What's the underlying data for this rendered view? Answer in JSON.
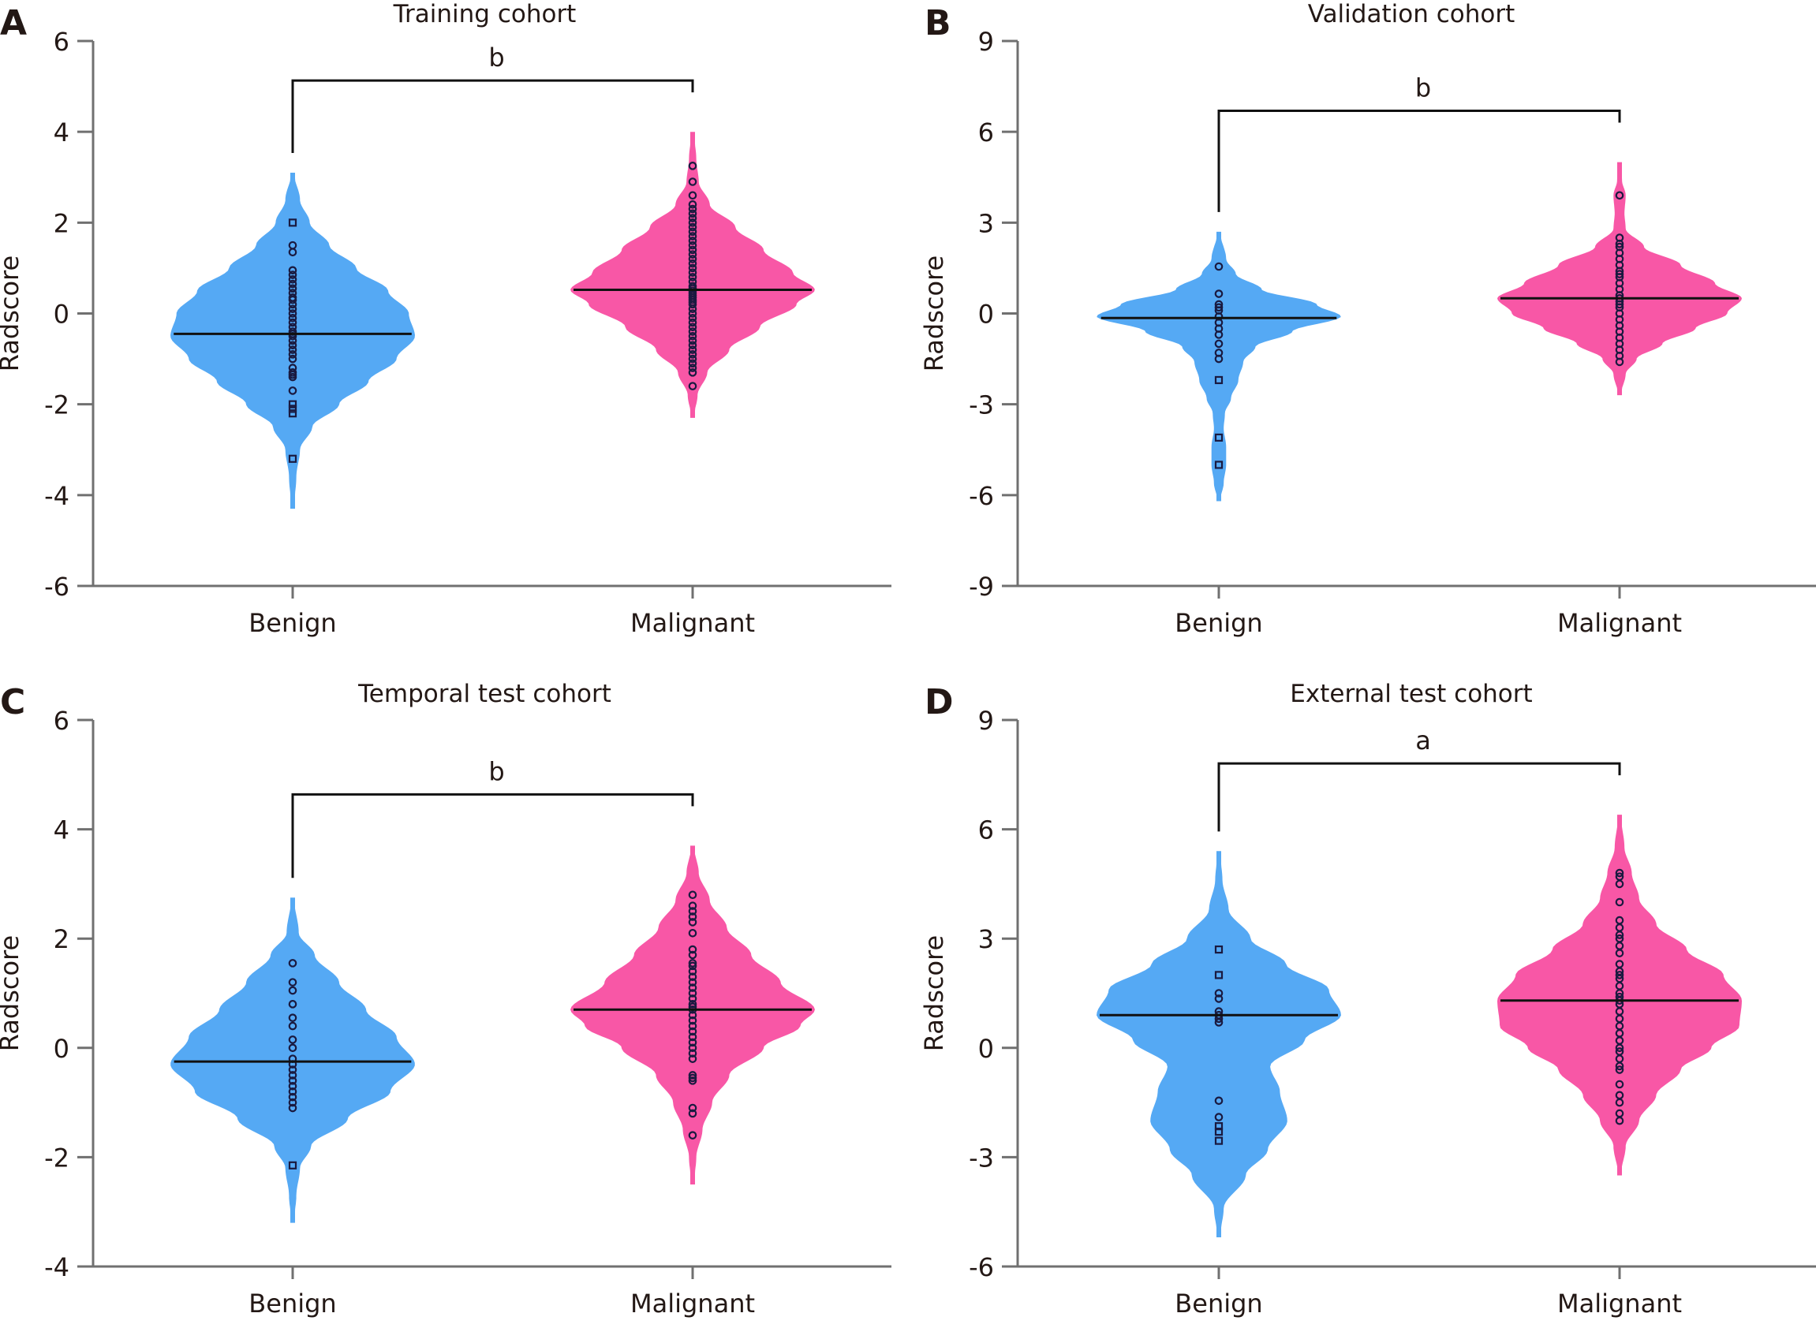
{
  "figure": {
    "colors": {
      "benign": "#55A9F4",
      "malignant": "#F857A6",
      "points": "#1a1a40",
      "axis": "#707070"
    }
  },
  "chart_data": [
    {
      "panel": "A",
      "type": "violin",
      "title": "Training cohort",
      "ylabel": "Radscore",
      "xlabel": "",
      "ylim": [
        -6,
        6
      ],
      "yticks": [
        6,
        4,
        2,
        0,
        -2,
        -4,
        -6
      ],
      "categories": [
        "Benign",
        "Malignant"
      ],
      "significance": "b",
      "series": [
        {
          "name": "Benign",
          "median": -0.45,
          "range": [
            -4.3,
            3.1
          ],
          "density": [
            [
              -4.3,
              0.01
            ],
            [
              -3.6,
              0.03
            ],
            [
              -3.0,
              0.06
            ],
            [
              -2.5,
              0.16
            ],
            [
              -2.0,
              0.38
            ],
            [
              -1.5,
              0.62
            ],
            [
              -1.0,
              0.85
            ],
            [
              -0.5,
              1.0
            ],
            [
              0.0,
              0.95
            ],
            [
              0.5,
              0.78
            ],
            [
              1.0,
              0.52
            ],
            [
              1.5,
              0.3
            ],
            [
              2.0,
              0.14
            ],
            [
              2.5,
              0.06
            ],
            [
              3.1,
              0.01
            ]
          ],
          "points": [
            2.0,
            1.5,
            1.35,
            0.95,
            0.85,
            0.75,
            0.65,
            0.55,
            0.45,
            0.35,
            0.3,
            0.2,
            0.1,
            0.0,
            -0.1,
            -0.2,
            -0.3,
            -0.4,
            -0.45,
            -0.5,
            -0.6,
            -0.7,
            -0.8,
            -0.9,
            -1.0,
            -1.2,
            -1.3,
            -1.35,
            -1.4,
            -1.7,
            -2.0,
            -2.1,
            -2.2,
            -3.2
          ]
        },
        {
          "name": "Malignant",
          "median": 0.52,
          "range": [
            -2.3,
            4.0
          ],
          "density": [
            [
              -2.3,
              0.01
            ],
            [
              -1.8,
              0.04
            ],
            [
              -1.3,
              0.12
            ],
            [
              -0.8,
              0.3
            ],
            [
              -0.3,
              0.55
            ],
            [
              0.2,
              0.85
            ],
            [
              0.52,
              1.0
            ],
            [
              0.9,
              0.82
            ],
            [
              1.4,
              0.58
            ],
            [
              1.9,
              0.35
            ],
            [
              2.4,
              0.14
            ],
            [
              2.9,
              0.05
            ],
            [
              3.4,
              0.03
            ],
            [
              4.0,
              0.01
            ]
          ],
          "points": [
            3.25,
            2.9,
            2.6,
            2.4,
            2.3,
            2.2,
            2.1,
            2.0,
            1.9,
            1.8,
            1.7,
            1.6,
            1.5,
            1.4,
            1.3,
            1.2,
            1.1,
            1.0,
            0.9,
            0.8,
            0.7,
            0.6,
            0.55,
            0.5,
            0.45,
            0.4,
            0.35,
            0.3,
            0.25,
            0.2,
            0.1,
            0.0,
            -0.1,
            -0.2,
            -0.3,
            -0.4,
            -0.5,
            -0.6,
            -0.7,
            -0.8,
            -0.9,
            -1.0,
            -1.1,
            -1.2,
            -1.3,
            -1.6
          ]
        }
      ]
    },
    {
      "panel": "B",
      "type": "violin",
      "title": "Validation cohort",
      "ylabel": "Radscore",
      "xlabel": "",
      "ylim": [
        -9,
        9
      ],
      "yticks": [
        9,
        6,
        3,
        0,
        -3,
        -6,
        -9
      ],
      "categories": [
        "Benign",
        "Malignant"
      ],
      "significance": "b",
      "series": [
        {
          "name": "Benign",
          "median": -0.15,
          "range": [
            -6.2,
            2.7
          ],
          "density": [
            [
              -6.2,
              0.01
            ],
            [
              -5.6,
              0.04
            ],
            [
              -5.0,
              0.06
            ],
            [
              -4.4,
              0.06
            ],
            [
              -3.8,
              0.04
            ],
            [
              -3.3,
              0.05
            ],
            [
              -2.8,
              0.1
            ],
            [
              -2.2,
              0.16
            ],
            [
              -1.6,
              0.2
            ],
            [
              -1.1,
              0.3
            ],
            [
              -0.6,
              0.6
            ],
            [
              -0.1,
              1.0
            ],
            [
              0.3,
              0.8
            ],
            [
              0.8,
              0.35
            ],
            [
              1.3,
              0.14
            ],
            [
              1.8,
              0.06
            ],
            [
              2.7,
              0.01
            ]
          ],
          "points": [
            1.55,
            0.65,
            0.3,
            0.2,
            0.1,
            -0.1,
            -0.3,
            -0.5,
            -0.7,
            -1.0,
            -1.3,
            -1.5,
            -2.2,
            -4.1,
            -5.0
          ]
        },
        {
          "name": "Malignant",
          "median": 0.5,
          "range": [
            -2.7,
            5.0
          ],
          "density": [
            [
              -2.7,
              0.01
            ],
            [
              -2.0,
              0.05
            ],
            [
              -1.5,
              0.14
            ],
            [
              -1.0,
              0.35
            ],
            [
              -0.5,
              0.62
            ],
            [
              0.0,
              0.88
            ],
            [
              0.5,
              1.0
            ],
            [
              1.0,
              0.78
            ],
            [
              1.6,
              0.5
            ],
            [
              2.2,
              0.2
            ],
            [
              2.8,
              0.05
            ],
            [
              3.3,
              0.04
            ],
            [
              3.9,
              0.05
            ],
            [
              4.4,
              0.02
            ],
            [
              5.0,
              0.01
            ]
          ],
          "points": [
            3.9,
            2.5,
            2.3,
            2.2,
            2.0,
            1.8,
            1.6,
            1.4,
            1.3,
            1.2,
            1.0,
            0.8,
            0.6,
            0.5,
            0.4,
            0.3,
            0.2,
            0.0,
            -0.2,
            -0.4,
            -0.6,
            -0.8,
            -1.0,
            -1.2,
            -1.4,
            -1.6
          ]
        }
      ]
    },
    {
      "panel": "C",
      "type": "violin",
      "title": "Temporal test cohort",
      "ylabel": "Radscore",
      "xlabel": "",
      "ylim": [
        -4,
        6
      ],
      "yticks": [
        6,
        4,
        2,
        0,
        -2,
        -4
      ],
      "categories": [
        "Benign",
        "Malignant"
      ],
      "significance": "b",
      "series": [
        {
          "name": "Benign",
          "median": -0.25,
          "range": [
            -3.2,
            2.75
          ],
          "density": [
            [
              -3.2,
              0.01
            ],
            [
              -2.7,
              0.03
            ],
            [
              -2.2,
              0.06
            ],
            [
              -1.8,
              0.15
            ],
            [
              -1.3,
              0.45
            ],
            [
              -0.8,
              0.8
            ],
            [
              -0.3,
              1.0
            ],
            [
              0.2,
              0.85
            ],
            [
              0.7,
              0.6
            ],
            [
              1.2,
              0.38
            ],
            [
              1.7,
              0.18
            ],
            [
              2.1,
              0.05
            ],
            [
              2.75,
              0.01
            ]
          ],
          "points": [
            1.55,
            1.2,
            1.05,
            0.8,
            0.55,
            0.4,
            0.15,
            0.0,
            -0.2,
            -0.3,
            -0.4,
            -0.5,
            -0.6,
            -0.7,
            -0.8,
            -0.9,
            -1.0,
            -1.1,
            -2.15
          ]
        },
        {
          "name": "Malignant",
          "median": 0.7,
          "range": [
            -2.5,
            3.7
          ],
          "density": [
            [
              -2.5,
              0.01
            ],
            [
              -2.0,
              0.03
            ],
            [
              -1.5,
              0.08
            ],
            [
              -1.0,
              0.16
            ],
            [
              -0.5,
              0.3
            ],
            [
              0.0,
              0.58
            ],
            [
              0.4,
              0.88
            ],
            [
              0.7,
              1.0
            ],
            [
              1.2,
              0.72
            ],
            [
              1.7,
              0.48
            ],
            [
              2.2,
              0.28
            ],
            [
              2.7,
              0.14
            ],
            [
              3.2,
              0.05
            ],
            [
              3.7,
              0.01
            ]
          ],
          "points": [
            2.8,
            2.6,
            2.5,
            2.4,
            2.3,
            2.1,
            1.8,
            1.7,
            1.55,
            1.5,
            1.4,
            1.3,
            1.2,
            1.1,
            1.0,
            0.9,
            0.8,
            0.75,
            0.7,
            0.6,
            0.5,
            0.4,
            0.3,
            0.2,
            0.1,
            0.0,
            -0.1,
            -0.2,
            -0.5,
            -0.55,
            -0.6,
            -1.1,
            -1.2,
            -1.6
          ]
        }
      ]
    },
    {
      "panel": "D",
      "type": "violin",
      "title": "External test cohort",
      "ylabel": "Radscore",
      "xlabel": "",
      "ylim": [
        -6,
        9
      ],
      "yticks": [
        9,
        6,
        3,
        0,
        -3,
        -6
      ],
      "categories": [
        "Benign",
        "Malignant"
      ],
      "significance": "a",
      "series": [
        {
          "name": "Benign",
          "median": 0.9,
          "range": [
            -5.2,
            5.4
          ],
          "density": [
            [
              -5.2,
              0.01
            ],
            [
              -4.4,
              0.04
            ],
            [
              -3.5,
              0.22
            ],
            [
              -2.8,
              0.4
            ],
            [
              -2.0,
              0.56
            ],
            [
              -1.2,
              0.5
            ],
            [
              -0.5,
              0.42
            ],
            [
              0.2,
              0.7
            ],
            [
              0.9,
              1.0
            ],
            [
              1.6,
              0.9
            ],
            [
              2.3,
              0.55
            ],
            [
              3.0,
              0.26
            ],
            [
              3.8,
              0.08
            ],
            [
              4.6,
              0.03
            ],
            [
              5.4,
              0.01
            ]
          ],
          "points": [
            2.7,
            2.0,
            1.5,
            1.35,
            1.0,
            0.9,
            0.8,
            0.7,
            -1.45,
            -1.9,
            -2.15,
            -2.3,
            -2.55
          ]
        },
        {
          "name": "Malignant",
          "median": 1.3,
          "range": [
            -3.5,
            6.4
          ],
          "density": [
            [
              -3.5,
              0.01
            ],
            [
              -2.7,
              0.05
            ],
            [
              -2.0,
              0.16
            ],
            [
              -1.3,
              0.3
            ],
            [
              -0.6,
              0.5
            ],
            [
              0.0,
              0.75
            ],
            [
              0.6,
              0.98
            ],
            [
              1.3,
              1.0
            ],
            [
              2.0,
              0.85
            ],
            [
              2.7,
              0.55
            ],
            [
              3.4,
              0.3
            ],
            [
              4.1,
              0.16
            ],
            [
              4.8,
              0.1
            ],
            [
              5.5,
              0.04
            ],
            [
              6.4,
              0.01
            ]
          ],
          "points": [
            4.8,
            4.7,
            4.5,
            4.0,
            3.5,
            3.3,
            3.1,
            3.0,
            2.8,
            2.6,
            2.3,
            2.1,
            2.0,
            1.9,
            1.7,
            1.5,
            1.4,
            1.3,
            1.2,
            1.0,
            0.8,
            0.6,
            0.4,
            0.2,
            0.0,
            -0.1,
            -0.3,
            -0.5,
            -0.6,
            -1.0,
            -1.3,
            -1.5,
            -1.8,
            -2.0
          ]
        }
      ]
    }
  ]
}
